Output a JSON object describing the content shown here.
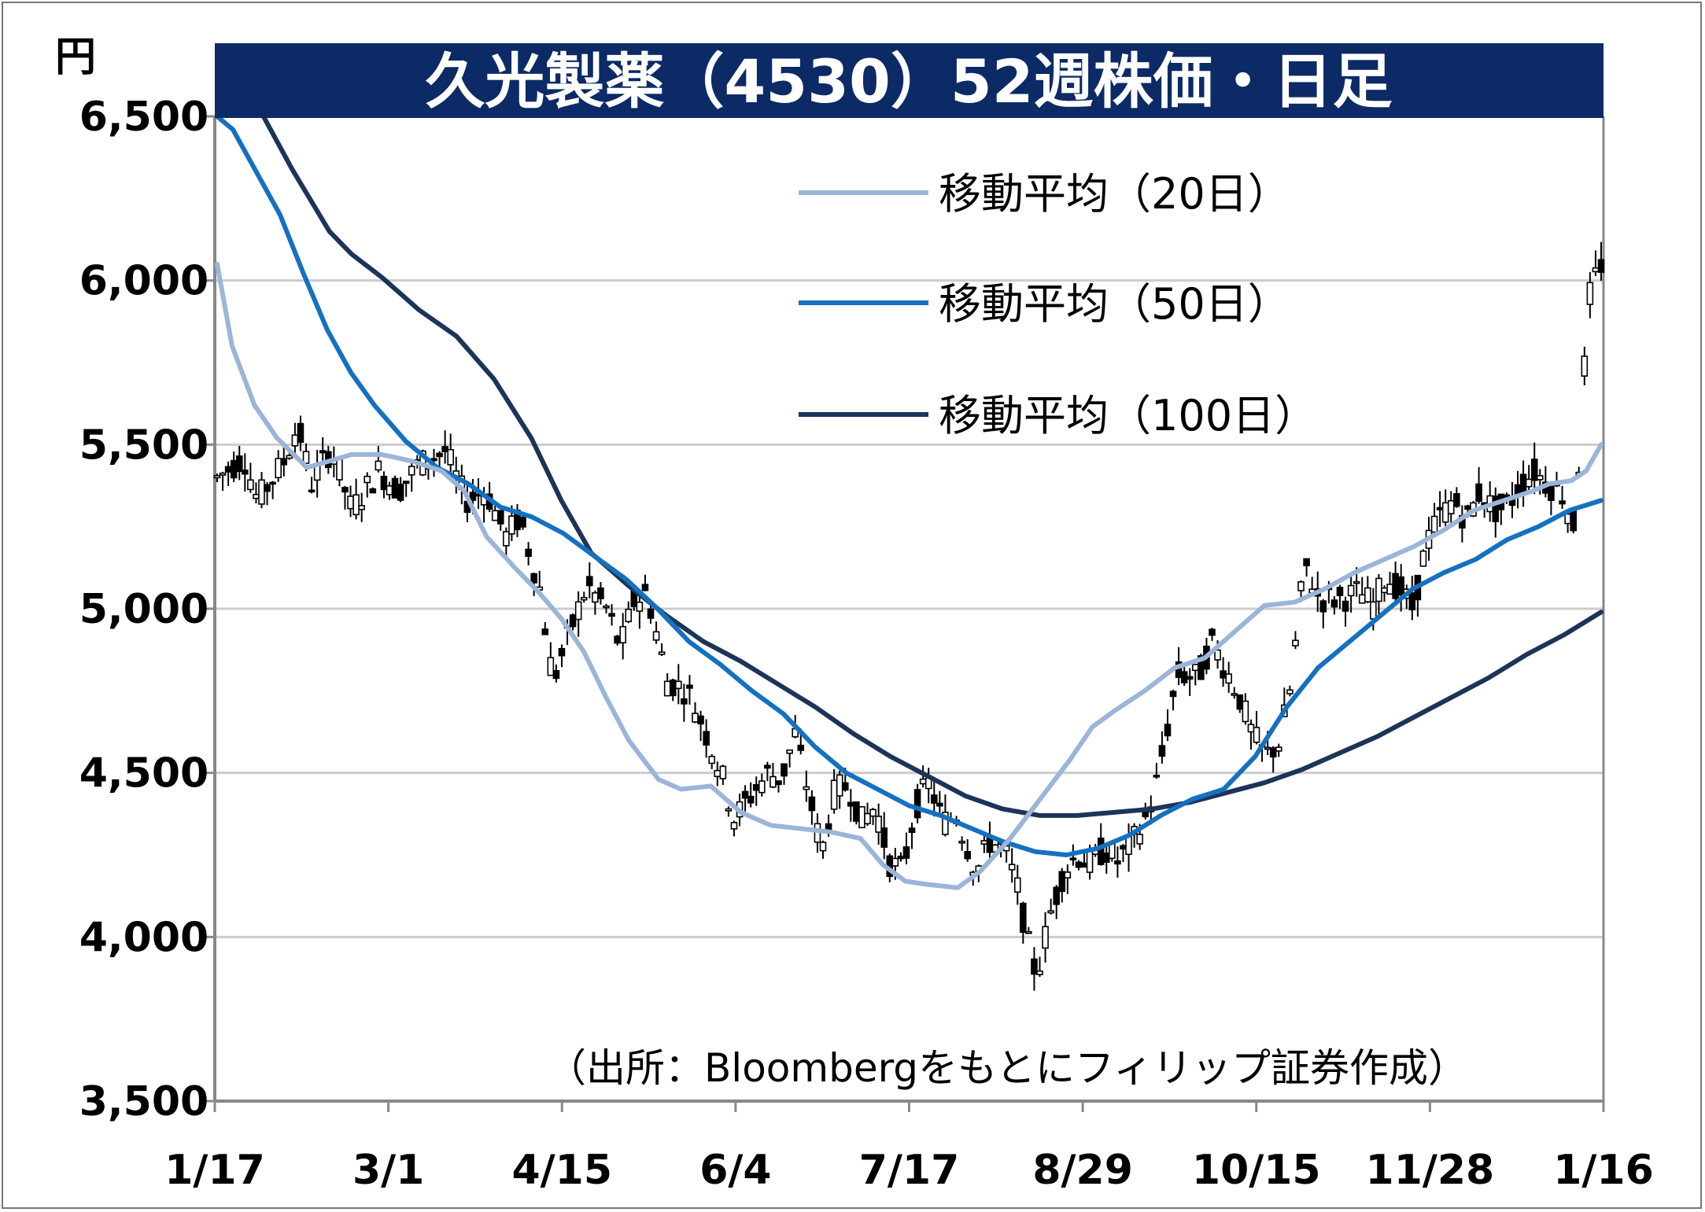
{
  "chart_data": {
    "type": "candlestick",
    "title": "久光製薬（4530）52週株価・日足",
    "unit": "円",
    "source": "（出所：Bloombergをもとにフィリップ証券作成）",
    "ylim": [
      3500,
      6500
    ],
    "y_ticks": [
      "6,500",
      "6,000",
      "5,500",
      "5,000",
      "4,500",
      "4,000",
      "3,500"
    ],
    "y_tick_values": [
      6500,
      6000,
      5500,
      5000,
      4500,
      4000,
      3500
    ],
    "x_ticks": [
      "1/17",
      "3/1",
      "4/15",
      "6/4",
      "7/17",
      "8/29",
      "10/15",
      "11/28",
      "1/16"
    ],
    "grid": true,
    "legend_position": "top-right",
    "colors": {
      "title_bg": "#0b2a66",
      "ma20": "#9bb5d9",
      "ma50": "#1471c1",
      "ma100": "#1c3459",
      "grid": "#cccccc"
    },
    "price_anchors": [
      [
        0,
        5400
      ],
      [
        4,
        5460
      ],
      [
        6,
        5330
      ],
      [
        10,
        5450
      ],
      [
        12,
        5560
      ],
      [
        14,
        5380
      ],
      [
        17,
        5490
      ],
      [
        20,
        5300
      ],
      [
        24,
        5420
      ],
      [
        27,
        5360
      ],
      [
        30,
        5440
      ],
      [
        34,
        5480
      ],
      [
        37,
        5330
      ],
      [
        40,
        5360
      ],
      [
        43,
        5220
      ],
      [
        45,
        5280
      ],
      [
        48,
        5060
      ],
      [
        50,
        4780
      ],
      [
        52,
        4900
      ],
      [
        55,
        5070
      ],
      [
        58,
        5000
      ],
      [
        60,
        4880
      ],
      [
        62,
        5020
      ],
      [
        64,
        5050
      ],
      [
        67,
        4780
      ],
      [
        70,
        4750
      ],
      [
        72,
        4660
      ],
      [
        75,
        4500
      ],
      [
        77,
        4360
      ],
      [
        79,
        4420
      ],
      [
        82,
        4500
      ],
      [
        84,
        4480
      ],
      [
        86,
        4620
      ],
      [
        88,
        4440
      ],
      [
        90,
        4260
      ],
      [
        92,
        4450
      ],
      [
        94,
        4460
      ],
      [
        96,
        4350
      ],
      [
        98,
        4400
      ],
      [
        100,
        4230
      ],
      [
        102,
        4200
      ],
      [
        104,
        4400
      ],
      [
        106,
        4470
      ],
      [
        108,
        4350
      ],
      [
        110,
        4370
      ],
      [
        113,
        4200
      ],
      [
        115,
        4290
      ],
      [
        117,
        4270
      ],
      [
        119,
        4160
      ],
      [
        121,
        3950
      ],
      [
        122,
        3880
      ],
      [
        124,
        4070
      ],
      [
        126,
        4200
      ],
      [
        128,
        4250
      ],
      [
        130,
        4220
      ],
      [
        132,
        4270
      ],
      [
        134,
        4230
      ],
      [
        136,
        4280
      ],
      [
        138,
        4350
      ],
      [
        140,
        4480
      ],
      [
        142,
        4700
      ],
      [
        143,
        4800
      ],
      [
        146,
        4790
      ],
      [
        148,
        4900
      ],
      [
        150,
        4820
      ],
      [
        152,
        4740
      ],
      [
        154,
        4620
      ],
      [
        156,
        4550
      ],
      [
        158,
        4590
      ],
      [
        160,
        4780
      ],
      [
        161,
        5000
      ],
      [
        162,
        5130
      ],
      [
        164,
        5030
      ],
      [
        167,
        5030
      ],
      [
        170,
        5050
      ],
      [
        172,
        5010
      ],
      [
        174,
        5100
      ],
      [
        176,
        5060
      ],
      [
        178,
        5000
      ],
      [
        180,
        5200
      ],
      [
        182,
        5280
      ],
      [
        184,
        5330
      ],
      [
        186,
        5270
      ],
      [
        188,
        5360
      ],
      [
        190,
        5300
      ],
      [
        192,
        5310
      ],
      [
        194,
        5380
      ],
      [
        196,
        5420
      ],
      [
        198,
        5380
      ],
      [
        200,
        5360
      ],
      [
        202,
        5250
      ],
      [
        203,
        5530
      ],
      [
        204,
        5930
      ],
      [
        205,
        6000
      ],
      [
        206,
        6050
      ]
    ],
    "ma20": [
      [
        0,
        6050
      ],
      [
        2,
        5800
      ],
      [
        5,
        5620
      ],
      [
        8,
        5520
      ],
      [
        12,
        5430
      ],
      [
        15,
        5450
      ],
      [
        18,
        5470
      ],
      [
        22,
        5470
      ],
      [
        26,
        5450
      ],
      [
        30,
        5420
      ],
      [
        33,
        5360
      ],
      [
        36,
        5220
      ],
      [
        40,
        5120
      ],
      [
        43,
        5050
      ],
      [
        46,
        4970
      ],
      [
        49,
        4870
      ],
      [
        52,
        4730
      ],
      [
        55,
        4600
      ],
      [
        57,
        4540
      ],
      [
        59,
        4480
      ],
      [
        62,
        4450
      ],
      [
        66,
        4460
      ],
      [
        70,
        4380
      ],
      [
        74,
        4340
      ],
      [
        78,
        4330
      ],
      [
        82,
        4320
      ],
      [
        86,
        4300
      ],
      [
        89,
        4220
      ],
      [
        92,
        4170
      ],
      [
        95,
        4160
      ],
      [
        99,
        4150
      ],
      [
        102,
        4200
      ],
      [
        106,
        4300
      ],
      [
        110,
        4420
      ],
      [
        114,
        4540
      ],
      [
        117,
        4640
      ],
      [
        120,
        4690
      ],
      [
        124,
        4750
      ],
      [
        128,
        4820
      ],
      [
        132,
        4850
      ],
      [
        136,
        4930
      ],
      [
        140,
        5010
      ],
      [
        144,
        5020
      ],
      [
        148,
        5060
      ],
      [
        152,
        5110
      ],
      [
        156,
        5150
      ],
      [
        160,
        5190
      ],
      [
        164,
        5240
      ],
      [
        168,
        5300
      ],
      [
        172,
        5330
      ],
      [
        176,
        5360
      ],
      [
        178,
        5380
      ],
      [
        181,
        5390
      ],
      [
        183,
        5420
      ],
      [
        185,
        5500
      ]
    ],
    "ma50": [
      [
        0,
        6500
      ],
      [
        2,
        6460
      ],
      [
        5,
        6330
      ],
      [
        8,
        6200
      ],
      [
        11,
        6020
      ],
      [
        14,
        5850
      ],
      [
        17,
        5720
      ],
      [
        20,
        5620
      ],
      [
        24,
        5510
      ],
      [
        28,
        5430
      ],
      [
        32,
        5380
      ],
      [
        36,
        5310
      ],
      [
        40,
        5280
      ],
      [
        44,
        5230
      ],
      [
        48,
        5160
      ],
      [
        52,
        5090
      ],
      [
        56,
        5000
      ],
      [
        60,
        4900
      ],
      [
        64,
        4830
      ],
      [
        68,
        4750
      ],
      [
        72,
        4680
      ],
      [
        76,
        4580
      ],
      [
        80,
        4500
      ],
      [
        84,
        4450
      ],
      [
        88,
        4400
      ],
      [
        92,
        4370
      ],
      [
        96,
        4330
      ],
      [
        100,
        4290
      ],
      [
        104,
        4260
      ],
      [
        108,
        4250
      ],
      [
        112,
        4270
      ],
      [
        116,
        4310
      ],
      [
        120,
        4370
      ],
      [
        124,
        4420
      ],
      [
        128,
        4450
      ],
      [
        132,
        4550
      ],
      [
        136,
        4700
      ],
      [
        140,
        4820
      ],
      [
        144,
        4900
      ],
      [
        148,
        4980
      ],
      [
        152,
        5060
      ],
      [
        156,
        5110
      ],
      [
        160,
        5150
      ],
      [
        164,
        5210
      ],
      [
        168,
        5250
      ],
      [
        172,
        5300
      ],
      [
        176,
        5330
      ]
    ],
    "ma100": [
      [
        0,
        6720
      ],
      [
        5,
        6550
      ],
      [
        10,
        6340
      ],
      [
        15,
        6150
      ],
      [
        18,
        6080
      ],
      [
        22,
        6010
      ],
      [
        27,
        5910
      ],
      [
        32,
        5830
      ],
      [
        37,
        5700
      ],
      [
        42,
        5520
      ],
      [
        46,
        5330
      ],
      [
        50,
        5170
      ],
      [
        55,
        5070
      ],
      [
        60,
        4980
      ],
      [
        65,
        4900
      ],
      [
        70,
        4840
      ],
      [
        75,
        4770
      ],
      [
        80,
        4700
      ],
      [
        85,
        4620
      ],
      [
        90,
        4550
      ],
      [
        95,
        4490
      ],
      [
        100,
        4430
      ],
      [
        105,
        4390
      ],
      [
        110,
        4370
      ],
      [
        115,
        4370
      ],
      [
        120,
        4380
      ],
      [
        125,
        4390
      ],
      [
        130,
        4410
      ],
      [
        135,
        4440
      ],
      [
        140,
        4470
      ],
      [
        145,
        4510
      ],
      [
        150,
        4560
      ],
      [
        155,
        4610
      ],
      [
        160,
        4670
      ],
      [
        165,
        4730
      ],
      [
        170,
        4790
      ],
      [
        175,
        4860
      ],
      [
        180,
        4920
      ],
      [
        185,
        4990
      ]
    ]
  },
  "legend": {
    "ma20_label": "移動平均（20日）",
    "ma50_label": "移動平均（50日）",
    "ma100_label": "移動平均（100日）"
  }
}
